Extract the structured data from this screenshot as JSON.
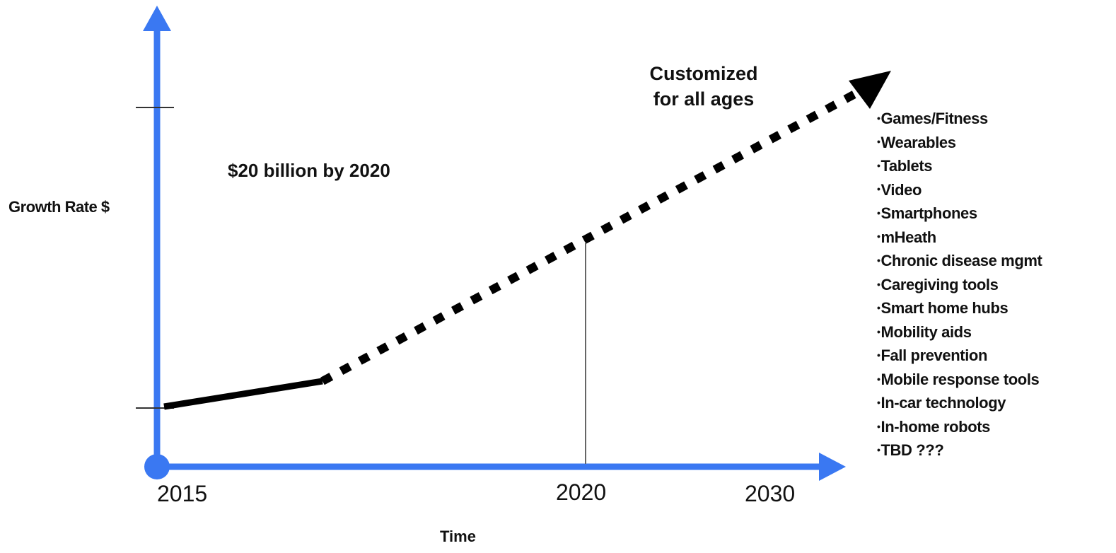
{
  "diagram": {
    "y_axis_label": "Growth Rate $",
    "x_axis_label": "Time",
    "x_ticks": [
      "2015",
      "2020",
      "2030"
    ],
    "annotation": "$20 billion  by 2020",
    "trend_label_lines": [
      "Customized",
      "for all ages"
    ],
    "categories": [
      "Games/Fitness",
      "Wearables",
      "Tablets",
      "Video",
      "Smartphones",
      "mHeath",
      "Chronic disease mgmt",
      "Caregiving tools",
      "Smart home hubs",
      "Mobility aids",
      "Fall prevention",
      "Mobile response tools",
      "In-car technology",
      "In-home robots",
      "TBD ???"
    ],
    "colors": {
      "axis": "#3a78f2",
      "trend": "#000000",
      "marker_line": "#666666"
    }
  }
}
